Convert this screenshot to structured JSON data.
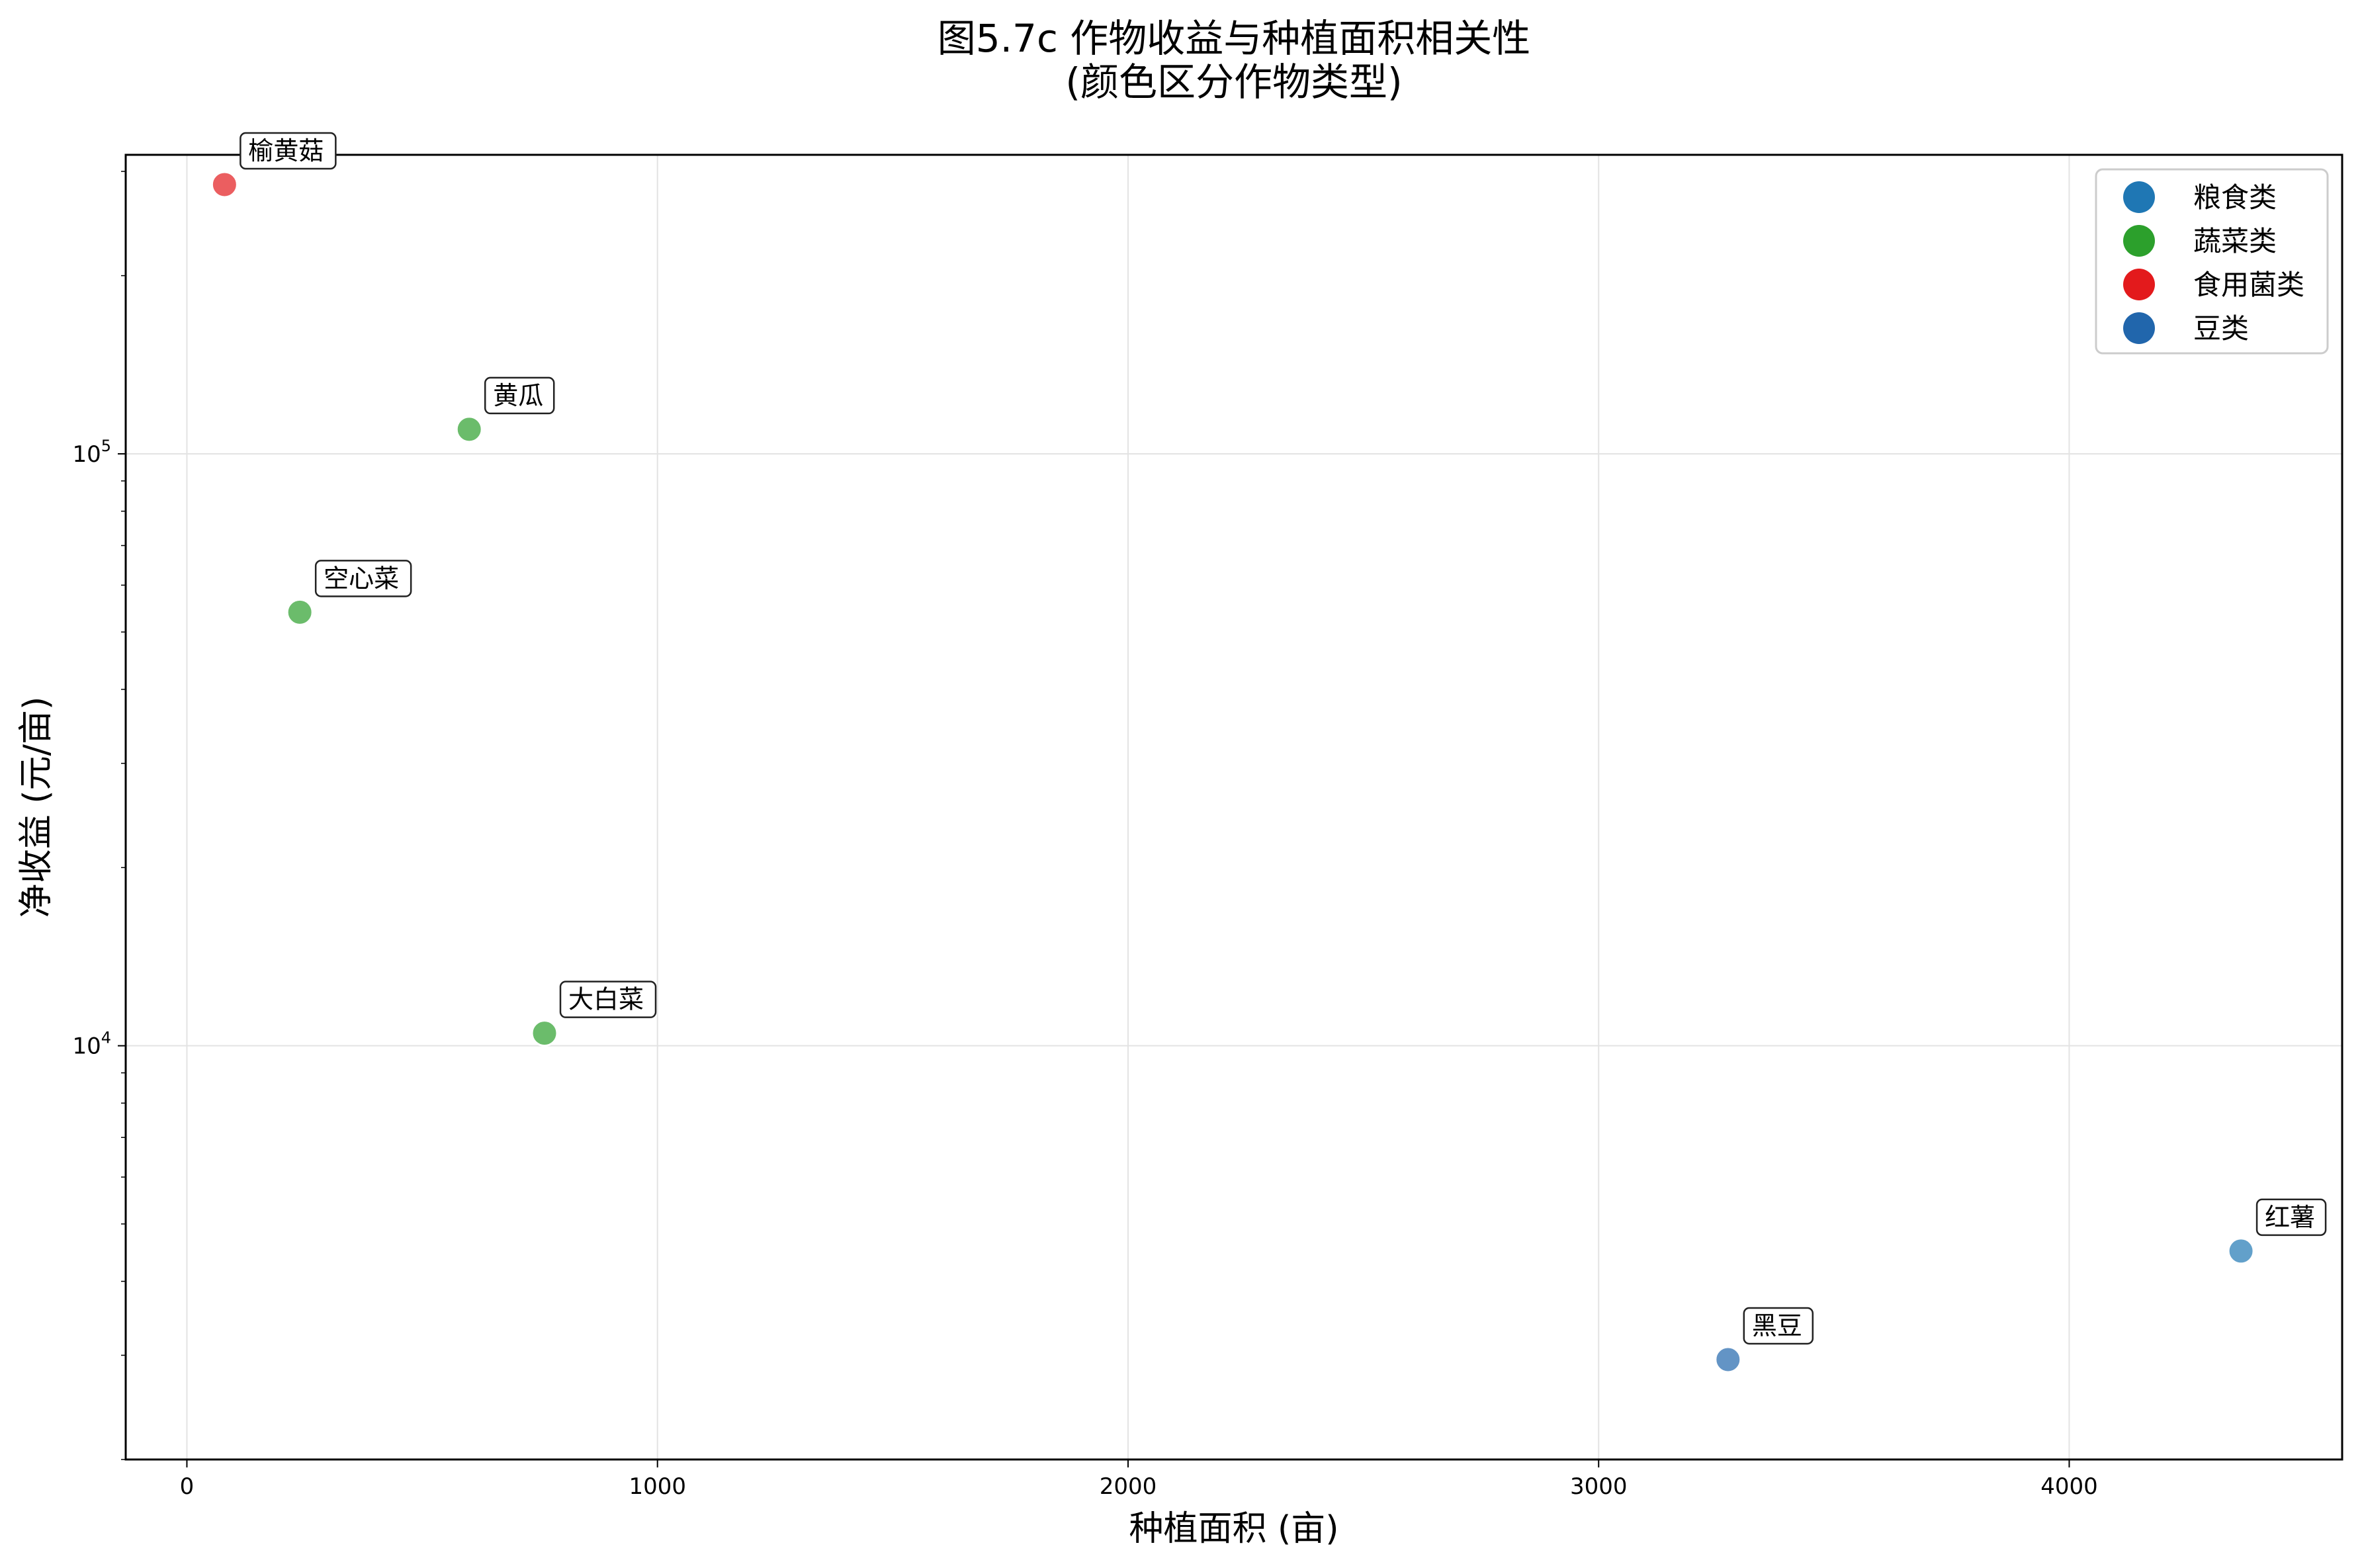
{
  "chart_data": {
    "type": "scatter",
    "title_lines": [
      "图5.7c 作物收益与种植面积相关性",
      "(颜色区分作物类型)"
    ],
    "xlabel": "种植面积 (亩)",
    "ylabel": "净收益 (元/亩)",
    "xlim": [
      -130,
      4580
    ],
    "ylim": [
      2000,
      320000
    ],
    "y_scale": "log",
    "x_ticks": [
      0,
      1000,
      2000,
      3000,
      4000
    ],
    "x_tick_labels": [
      "0",
      "1000",
      "2000",
      "3000",
      "4000"
    ],
    "y_ticks": [
      {
        "value": 10000,
        "base": "10",
        "exp": "4"
      },
      {
        "value": 100000,
        "base": "10",
        "exp": "5"
      }
    ],
    "grid": true,
    "legend_position": "top-right",
    "categories": [
      {
        "name": "粮食类",
        "color": "#1f77b4"
      },
      {
        "name": "蔬菜类",
        "color": "#2ca02c"
      },
      {
        "name": "食用菌类",
        "color": "#e31a1c"
      },
      {
        "name": "豆类",
        "color": "#2166ac"
      }
    ],
    "points": [
      {
        "label": "榆黄菇",
        "x": 80,
        "y": 285000,
        "category": "食用菌类"
      },
      {
        "label": "黄瓜",
        "x": 600,
        "y": 110000,
        "category": "蔬菜类"
      },
      {
        "label": "空心菜",
        "x": 240,
        "y": 54000,
        "category": "蔬菜类"
      },
      {
        "label": "大白菜",
        "x": 760,
        "y": 10500,
        "category": "蔬菜类"
      },
      {
        "label": "红薯",
        "x": 4365,
        "y": 4500,
        "category": "粮食类"
      },
      {
        "label": "黑豆",
        "x": 3275,
        "y": 2950,
        "category": "豆类"
      }
    ]
  }
}
